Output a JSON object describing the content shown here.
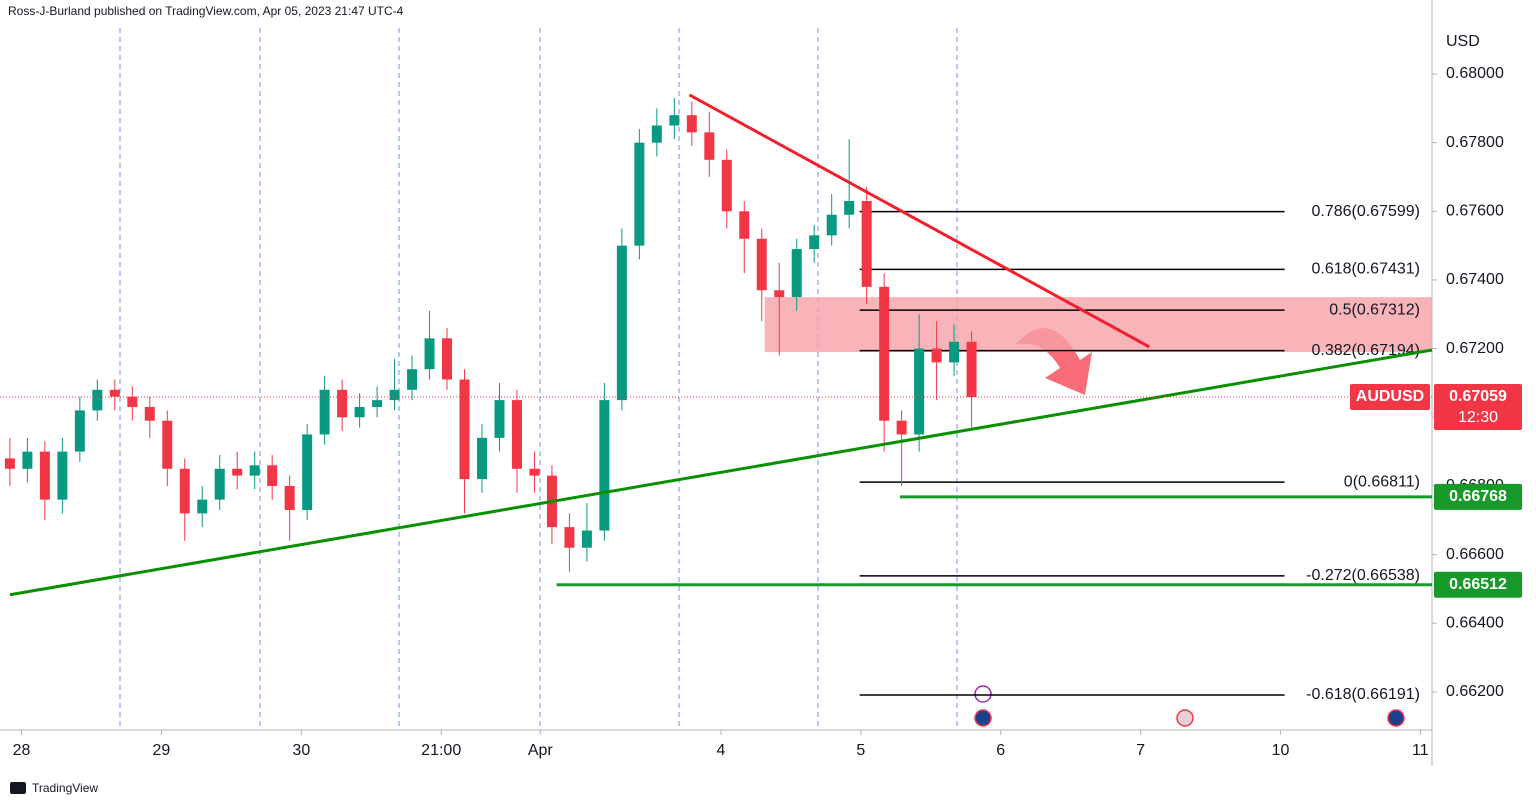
{
  "chart_data": {
    "type": "candlestick",
    "header": "Ross-J-Burland published on TradingView.com, Apr 05, 2023 21:47 UTC-4",
    "currency": "USD",
    "symbol": "AUDUSD",
    "countdown": "12:30",
    "footer": "TradingView",
    "up_color": "#089981",
    "down_color": "#f23645",
    "x": [
      0,
      3,
      6,
      9,
      12,
      15,
      18,
      21,
      24,
      27,
      30,
      33,
      36,
      39,
      42,
      45,
      48,
      51,
      54,
      57,
      60,
      63,
      66,
      69,
      72,
      75,
      78,
      81,
      84,
      87,
      90,
      93,
      96,
      99,
      102,
      105,
      108,
      111,
      114,
      117,
      120,
      123,
      126,
      129,
      132,
      135,
      138,
      141,
      144,
      147,
      150,
      153,
      156,
      159,
      162,
      165
    ],
    "open": [
      0.6688,
      0.6685,
      0.669,
      0.6676,
      0.669,
      0.6702,
      0.6708,
      0.6706,
      0.6703,
      0.6699,
      0.6685,
      0.6672,
      0.6676,
      0.6685,
      0.6683,
      0.6686,
      0.668,
      0.6673,
      0.6695,
      0.6708,
      0.67,
      0.6703,
      0.6705,
      0.6708,
      0.6714,
      0.6723,
      0.6711,
      0.6682,
      0.6694,
      0.6705,
      0.6685,
      0.6683,
      0.6668,
      0.6662,
      0.6667,
      0.6705,
      0.675,
      0.678,
      0.6785,
      0.6788,
      0.6783,
      0.6775,
      0.676,
      0.6752,
      0.6737,
      0.6735,
      0.6749,
      0.6753,
      0.6759,
      0.6763,
      0.6738,
      0.6699,
      0.6695,
      0.672,
      0.6716,
      0.6722
    ],
    "high": [
      0.6694,
      0.6694,
      0.6693,
      0.6694,
      0.6706,
      0.6711,
      0.6711,
      0.6709,
      0.6706,
      0.6702,
      0.6688,
      0.668,
      0.6689,
      0.669,
      0.669,
      0.6689,
      0.6683,
      0.6698,
      0.6712,
      0.6711,
      0.6707,
      0.6709,
      0.6717,
      0.6718,
      0.6731,
      0.6726,
      0.6714,
      0.6698,
      0.671,
      0.6708,
      0.669,
      0.6686,
      0.6672,
      0.6675,
      0.671,
      0.6755,
      0.6784,
      0.679,
      0.6793,
      0.6792,
      0.6789,
      0.6778,
      0.6763,
      0.6755,
      0.6745,
      0.6752,
      0.6756,
      0.6765,
      0.6781,
      0.6767,
      0.6742,
      0.6702,
      0.673,
      0.6728,
      0.6727,
      0.6725
    ],
    "low": [
      0.668,
      0.6681,
      0.667,
      0.6672,
      0.6687,
      0.6699,
      0.6702,
      0.6699,
      0.6694,
      0.668,
      0.6664,
      0.6668,
      0.6673,
      0.6679,
      0.6679,
      0.6676,
      0.6664,
      0.667,
      0.6692,
      0.6696,
      0.6697,
      0.67,
      0.6702,
      0.6705,
      0.6711,
      0.6708,
      0.6672,
      0.6678,
      0.669,
      0.6678,
      0.6678,
      0.6663,
      0.6655,
      0.6658,
      0.6664,
      0.6702,
      0.6746,
      0.6776,
      0.6781,
      0.6779,
      0.677,
      0.6755,
      0.6742,
      0.6728,
      0.6718,
      0.6731,
      0.6745,
      0.675,
      0.6755,
      0.6733,
      0.669,
      0.668,
      0.669,
      0.6705,
      0.6712,
      0.6697
    ],
    "close": [
      0.6685,
      0.669,
      0.6676,
      0.669,
      0.6702,
      0.6708,
      0.6706,
      0.6703,
      0.6699,
      0.6685,
      0.6672,
      0.6676,
      0.6685,
      0.6683,
      0.6686,
      0.668,
      0.6673,
      0.6695,
      0.6708,
      0.67,
      0.6703,
      0.6705,
      0.6708,
      0.6714,
      0.6723,
      0.6711,
      0.6682,
      0.6694,
      0.6705,
      0.6685,
      0.6683,
      0.6668,
      0.6662,
      0.6667,
      0.6705,
      0.675,
      0.678,
      0.6785,
      0.6788,
      0.6783,
      0.6775,
      0.676,
      0.6752,
      0.6737,
      0.6735,
      0.6749,
      0.6753,
      0.6759,
      0.6763,
      0.6738,
      0.6699,
      0.6695,
      0.672,
      0.6716,
      0.6722,
      0.67059
    ],
    "xlim": [
      -1.7,
      244
    ],
    "ylim": [
      0.66089,
      0.68134
    ],
    "xticks": [
      {
        "value": 2,
        "label": "28"
      },
      {
        "value": 26,
        "label": "29"
      },
      {
        "value": 50,
        "label": "30"
      },
      {
        "value": 74,
        "label": "21:00"
      },
      {
        "value": 91,
        "label": "Apr"
      },
      {
        "value": 122,
        "label": "4"
      },
      {
        "value": 146,
        "label": "5"
      },
      {
        "value": 170,
        "label": "6"
      },
      {
        "value": 194,
        "label": "7"
      },
      {
        "value": 218,
        "label": "10"
      },
      {
        "value": 242,
        "label": "11"
      }
    ],
    "yticks": [
      {
        "value": 0.662,
        "label": "0.66200"
      },
      {
        "value": 0.664,
        "label": "0.66400"
      },
      {
        "value": 0.666,
        "label": "0.66600"
      },
      {
        "value": 0.668,
        "label": "0.66800"
      },
      {
        "value": 0.67,
        "label": "0.67000"
      },
      {
        "value": 0.672,
        "label": "0.67200"
      },
      {
        "value": 0.674,
        "label": "0.67400"
      },
      {
        "value": 0.676,
        "label": "0.67600"
      },
      {
        "value": 0.678,
        "label": "0.67800"
      },
      {
        "value": 0.68,
        "label": "0.68000"
      }
    ],
    "current_price": 0.67059,
    "fib_start": 145.8,
    "fib_end": 218.7,
    "fib_levels": [
      {
        "label": "0.786(0.67599)",
        "price": 0.67599
      },
      {
        "label": "0.618(0.67431)",
        "price": 0.67431
      },
      {
        "label": "0.5(0.67312)",
        "price": 0.67312
      },
      {
        "label": "0.382(0.67194)",
        "price": 0.67194
      },
      {
        "label": "0(0.66811)",
        "price": 0.66811
      },
      {
        "label": "-0.272(0.66538)",
        "price": 0.66538
      },
      {
        "label": "-0.618(0.66191)",
        "price": 0.66191
      }
    ],
    "zone": {
      "x": [
        129.5,
        244
      ],
      "y": [
        0.6719,
        0.6735
      ]
    },
    "support_lines": [
      {
        "price": 0.66768,
        "x": [
          152.7,
          244
        ]
      },
      {
        "price": 0.66512,
        "x": [
          93.8,
          244
        ]
      }
    ],
    "trend_lines": [
      {
        "color": "#089000",
        "x": [
          0,
          244
        ],
        "y": [
          0.66483,
          0.67196
        ]
      },
      {
        "color": "#f0202e",
        "x": [
          116.6,
          195.5
        ],
        "y": [
          0.67939,
          0.67205
        ]
      }
    ]
  }
}
